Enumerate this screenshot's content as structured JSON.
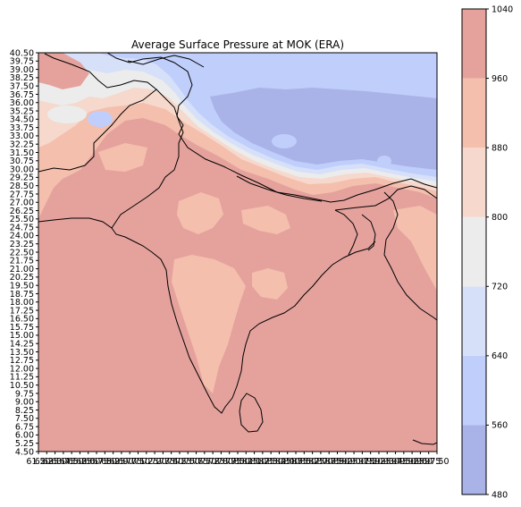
{
  "chart_data": {
    "type": "heatmap",
    "title": "Average Surface Pressure at MOK (ERA)",
    "xlabel": "",
    "ylabel": "",
    "y_tick_labels": [
      "40.50",
      "39.75",
      "39.00",
      "38.25",
      "37.50",
      "36.75",
      "36.00",
      "35.25",
      "34.50",
      "33.75",
      "33.00",
      "32.25",
      "31.50",
      "30.75",
      "30.00",
      "29.25",
      "28.50",
      "27.75",
      "27.00",
      "26.25",
      "25.50",
      "24.75",
      "24.00",
      "23.25",
      "22.50",
      "21.75",
      "21.00",
      "20.25",
      "19.50",
      "18.75",
      "18.00",
      "17.25",
      "16.50",
      "15.75",
      "15.00",
      "14.25",
      "13.50",
      "12.75",
      "12.00",
      "11.25",
      "10.50",
      "9.75",
      "9.00",
      "8.25",
      "7.50",
      "6.75",
      "6.00",
      "5.25",
      "4.50"
    ],
    "x_tick_labels": [
      "61.50",
      "62.25",
      "63.00",
      "63.75",
      "64.50",
      "65.25",
      "66.00",
      "66.75",
      "67.50",
      "68.25",
      "69.00",
      "69.75",
      "70.50",
      "71.25",
      "72.00",
      "72.75",
      "73.50",
      "74.25",
      "75.00",
      "75.75",
      "76.50",
      "77.25",
      "78.00",
      "78.75",
      "79.50",
      "80.25",
      "81.00",
      "81.75",
      "82.50",
      "83.25",
      "84.00",
      "84.75",
      "85.50",
      "86.25",
      "87.00",
      "87.75",
      "88.50",
      "89.25",
      "90.00",
      "90.75",
      "91.50",
      "92.25",
      "93.00",
      "93.75",
      "94.50",
      "95.25",
      "96.00",
      "96.75",
      "97.50"
    ],
    "xlim": [
      61.5,
      97.5
    ],
    "ylim": [
      4.5,
      40.5
    ],
    "colorbar": {
      "levels": [
        480,
        560,
        640,
        720,
        800,
        880,
        960,
        1040
      ],
      "tick_labels": [
        "1040",
        "960",
        "880",
        "800",
        "720",
        "640",
        "560",
        "480"
      ],
      "colors": [
        "#a9b3e8",
        "#c0cefb",
        "#d6e0f9",
        "#ececec",
        "#f6d8cc",
        "#f4bfad",
        "#e5a29d"
      ]
    },
    "grid": false,
    "legend": "colorbar-right"
  }
}
